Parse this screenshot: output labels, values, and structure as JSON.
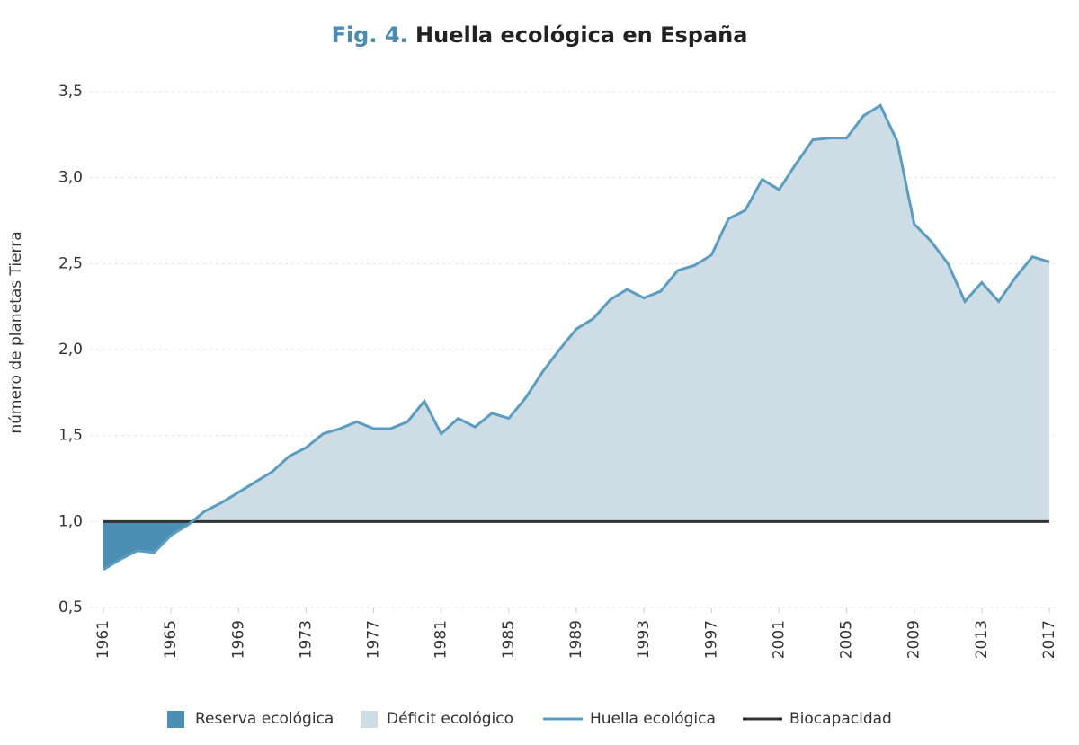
{
  "chart_data": {
    "type": "line",
    "figure_label": "Fig. 4.",
    "title": "Huella ecológica en España",
    "y_label": "número de planetas Tierra",
    "x": [
      1961,
      1962,
      1963,
      1964,
      1965,
      1966,
      1967,
      1968,
      1969,
      1970,
      1971,
      1972,
      1973,
      1974,
      1975,
      1976,
      1977,
      1978,
      1979,
      1980,
      1981,
      1982,
      1983,
      1984,
      1985,
      1986,
      1987,
      1988,
      1989,
      1990,
      1991,
      1992,
      1993,
      1994,
      1995,
      1996,
      1997,
      1998,
      1999,
      2000,
      2001,
      2002,
      2003,
      2004,
      2005,
      2006,
      2007,
      2008,
      2009,
      2010,
      2011,
      2012,
      2013,
      2014,
      2015,
      2016,
      2017
    ],
    "series": [
      {
        "name": "Huella ecológica",
        "color": "#5b9dc0",
        "values": [
          0.72,
          0.78,
          0.83,
          0.82,
          0.92,
          0.98,
          1.06,
          1.11,
          1.17,
          1.23,
          1.29,
          1.38,
          1.43,
          1.51,
          1.54,
          1.58,
          1.54,
          1.54,
          1.58,
          1.7,
          1.51,
          1.6,
          1.55,
          1.63,
          1.6,
          1.72,
          1.87,
          2.0,
          2.12,
          2.18,
          2.29,
          2.35,
          2.3,
          2.34,
          2.46,
          2.49,
          2.55,
          2.76,
          2.81,
          2.99,
          2.93,
          3.08,
          3.22,
          3.23,
          3.23,
          3.36,
          3.42,
          3.21,
          2.73,
          2.63,
          2.5,
          2.28,
          2.39,
          2.28,
          2.42,
          2.54,
          2.51
        ]
      },
      {
        "name": "Biocapacidad",
        "color": "#333333",
        "values": [
          1,
          1,
          1,
          1,
          1,
          1,
          1,
          1,
          1,
          1,
          1,
          1,
          1,
          1,
          1,
          1,
          1,
          1,
          1,
          1,
          1,
          1,
          1,
          1,
          1,
          1,
          1,
          1,
          1,
          1,
          1,
          1,
          1,
          1,
          1,
          1,
          1,
          1,
          1,
          1,
          1,
          1,
          1,
          1,
          1,
          1,
          1,
          1,
          1,
          1,
          1,
          1,
          1,
          1,
          1,
          1,
          1
        ]
      }
    ],
    "areas": [
      {
        "name": "Reserva ecológica",
        "color": "#4b8fb3"
      },
      {
        "name": "Déficit ecológico",
        "color": "#cddce5"
      }
    ],
    "xlim": [
      1961,
      2017
    ],
    "xticks": [
      1961,
      1965,
      1969,
      1973,
      1977,
      1981,
      1985,
      1989,
      1993,
      1997,
      2001,
      2005,
      2009,
      2013,
      2017
    ],
    "ylim": [
      0.5,
      3.5
    ],
    "yticks": [
      {
        "value": 0.5,
        "label": "0,5"
      },
      {
        "value": 1.0,
        "label": "1,0"
      },
      {
        "value": 1.5,
        "label": "1,5"
      },
      {
        "value": 2.0,
        "label": "2,0"
      },
      {
        "value": 2.5,
        "label": "2,5"
      },
      {
        "value": 3.0,
        "label": "3,0"
      },
      {
        "value": 3.5,
        "label": "3,5"
      }
    ],
    "grid": true,
    "legend": "bottom"
  }
}
